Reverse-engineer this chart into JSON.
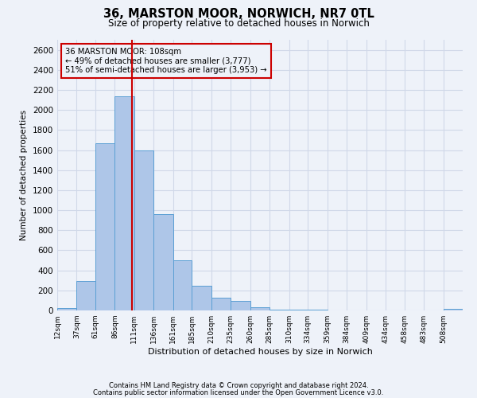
{
  "title": "36, MARSTON MOOR, NORWICH, NR7 0TL",
  "subtitle": "Size of property relative to detached houses in Norwich",
  "xlabel": "Distribution of detached houses by size in Norwich",
  "ylabel": "Number of detached properties",
  "bin_labels": [
    "12sqm",
    "37sqm",
    "61sqm",
    "86sqm",
    "111sqm",
    "136sqm",
    "161sqm",
    "185sqm",
    "210sqm",
    "235sqm",
    "260sqm",
    "285sqm",
    "310sqm",
    "334sqm",
    "359sqm",
    "384sqm",
    "409sqm",
    "434sqm",
    "458sqm",
    "483sqm",
    "508sqm"
  ],
  "bin_edges": [
    12,
    37,
    61,
    86,
    111,
    136,
    161,
    185,
    210,
    235,
    260,
    285,
    310,
    334,
    359,
    384,
    409,
    434,
    458,
    483,
    508
  ],
  "bar_heights": [
    20,
    295,
    1670,
    2140,
    1600,
    960,
    500,
    250,
    125,
    95,
    35,
    10,
    8,
    5,
    3,
    2,
    2,
    2,
    1,
    1,
    15
  ],
  "bar_color": "#aec6e8",
  "bar_edgecolor": "#5a9fd4",
  "ylim": [
    0,
    2700
  ],
  "yticks": [
    0,
    200,
    400,
    600,
    800,
    1000,
    1200,
    1400,
    1600,
    1800,
    2000,
    2200,
    2400,
    2600
  ],
  "property_line_x": 108,
  "property_line_color": "#cc0000",
  "annotation_line1": "36 MARSTON MOOR: 108sqm",
  "annotation_line2": "← 49% of detached houses are smaller (3,777)",
  "annotation_line3": "51% of semi-detached houses are larger (3,953) →",
  "annotation_box_edgecolor": "#cc0000",
  "grid_color": "#d0d8e8",
  "footer_line1": "Contains HM Land Registry data © Crown copyright and database right 2024.",
  "footer_line2": "Contains public sector information licensed under the Open Government Licence v3.0.",
  "background_color": "#eef2f9"
}
